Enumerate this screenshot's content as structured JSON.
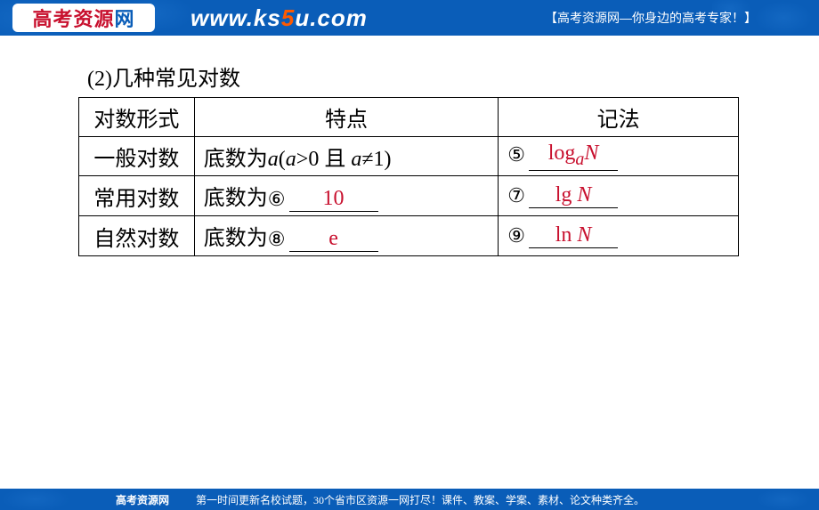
{
  "header": {
    "logo_main": "高考资源",
    "logo_last": "网",
    "url_pre": "www.ks",
    "url_accent": "5",
    "url_post": "u.com",
    "tagline": "【高考资源网—你身边的高考专家！】"
  },
  "section": {
    "title": "(2)几种常见对数"
  },
  "table": {
    "headers": {
      "c1": "对数形式",
      "c2": "特点",
      "c3": "记法"
    },
    "rows": [
      {
        "c1": "一般对数",
        "c2_prefix": "底数为",
        "c2_math": "a(a>0 且 a≠1)",
        "c2_circ": "",
        "c2_ans": "",
        "c3_circ": "⑤",
        "c3_ans_html": "log<sub style='font-style:italic'>a</sub><span class='math-i'>N</span>"
      },
      {
        "c1": "常用对数",
        "c2_prefix": "底数为",
        "c2_circ": "⑥",
        "c2_ans": "10",
        "c3_circ": "⑦",
        "c3_ans_html": "lg <span class='math-i'>N</span>"
      },
      {
        "c1": "自然对数",
        "c2_prefix": "底数为",
        "c2_circ": "⑧",
        "c2_ans": "e",
        "c3_circ": "⑨",
        "c3_ans_html": "ln <span class='math-i'>N</span>"
      }
    ]
  },
  "footer": {
    "logo": "高考资源网",
    "text": "第一时间更新名校试题，30个省市区资源一网打尽！课件、教案、学案、素材、论文种类齐全。"
  },
  "colors": {
    "header_bg": "#0a5db8",
    "logo_red": "#c8102e",
    "accent_orange": "#ff5a00",
    "answer_red": "#c8102e",
    "border": "#000000"
  }
}
